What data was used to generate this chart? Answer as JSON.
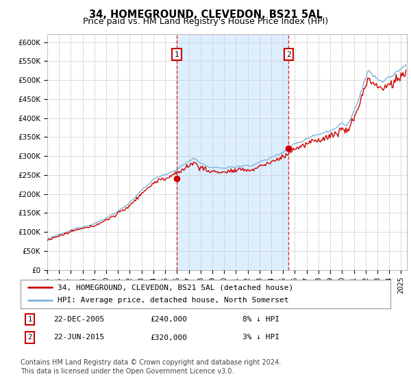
{
  "title": "34, HOMEGROUND, CLEVEDON, BS21 5AL",
  "subtitle": "Price paid vs. HM Land Registry's House Price Index (HPI)",
  "ylim": [
    0,
    620000
  ],
  "yticks": [
    0,
    50000,
    100000,
    150000,
    200000,
    250000,
    300000,
    350000,
    400000,
    450000,
    500000,
    550000,
    600000
  ],
  "ytick_labels": [
    "£0",
    "£50K",
    "£100K",
    "£150K",
    "£200K",
    "£250K",
    "£300K",
    "£350K",
    "£400K",
    "£450K",
    "£500K",
    "£550K",
    "£600K"
  ],
  "background_color": "#ffffff",
  "plot_bg_color": "#ffffff",
  "shade_color": "#ddeeff",
  "grid_color": "#cccccc",
  "hpi_color": "#7bb4d8",
  "price_color": "#cc0000",
  "sale1_price": 240000,
  "sale1_year": 2005.97,
  "sale2_price": 320000,
  "sale2_year": 2015.47,
  "sale1_date": "22-DEC-2005",
  "sale2_date": "22-JUN-2015",
  "sale1_note": "8% ↓ HPI",
  "sale2_note": "3% ↓ HPI",
  "legend_line1": "34, HOMEGROUND, CLEVEDON, BS21 5AL (detached house)",
  "legend_line2": "HPI: Average price, detached house, North Somerset",
  "footer1": "Contains HM Land Registry data © Crown copyright and database right 2024.",
  "footer2": "This data is licensed under the Open Government Licence v3.0.",
  "title_fontsize": 10.5,
  "subtitle_fontsize": 9,
  "tick_fontsize": 7.5,
  "legend_fontsize": 8,
  "footer_fontsize": 7
}
